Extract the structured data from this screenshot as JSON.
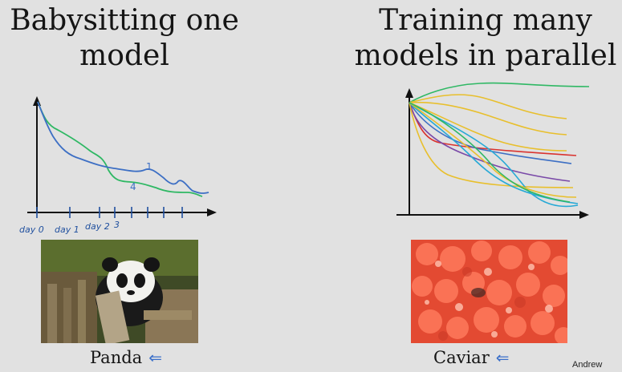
{
  "left": {
    "title_line1": "Babysitting one",
    "title_line2": "model",
    "caption": "Panda",
    "caption_mark": "⇐",
    "axis_labels": [
      "day 0",
      "day 1",
      "day 2",
      "3"
    ],
    "curve_labels": [
      "1",
      "4"
    ]
  },
  "right": {
    "title_line1": "Training many",
    "title_line2": "models in parallel",
    "caption": "Caviar",
    "caption_mark": "⇐"
  },
  "colors": {
    "background": "#e1e1e1",
    "blue": "#3d6fc4",
    "green": "#2fb864",
    "yellow": "#e8bf2c",
    "red": "#d9332f",
    "purple": "#7a4aa8",
    "teal": "#27a9d6"
  },
  "footer": {
    "credit": "Andrew"
  }
}
